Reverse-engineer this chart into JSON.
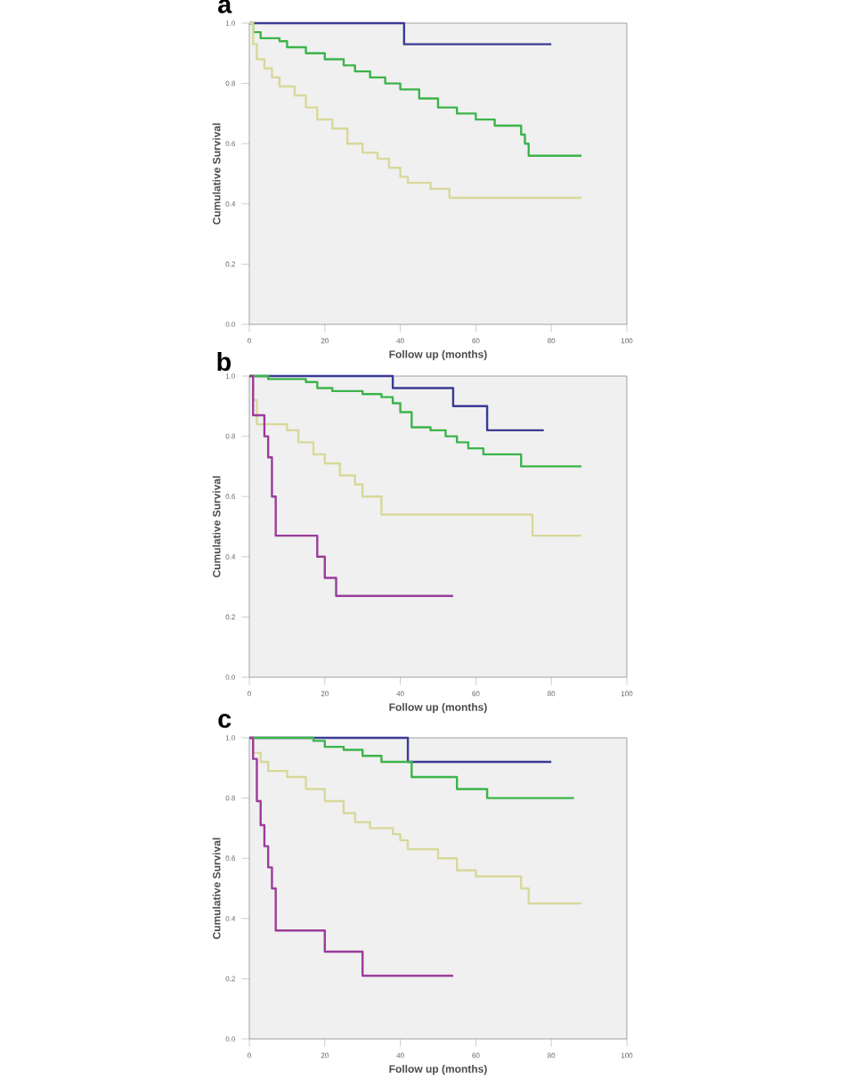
{
  "chart_data": [
    {
      "type": "step",
      "title": "a",
      "xlabel": "Follow up (months)",
      "ylabel": "Cumulative Survival",
      "xlim": [
        0,
        100
      ],
      "ylim": [
        0,
        1
      ],
      "xticks": [
        0,
        20,
        40,
        60,
        80,
        100
      ],
      "yticks": [
        {
          "value": 0,
          "label": "0.0"
        },
        {
          "value": 0.2,
          "label": "0.2"
        },
        {
          "value": 0.4,
          "label": "0.4"
        },
        {
          "value": 0.6,
          "label": "0.6"
        },
        {
          "value": 0.8,
          "label": "0.8"
        },
        {
          "value": 1,
          "label": "1.0"
        }
      ],
      "series": [
        {
          "color": "#3b3b95",
          "x": [
            0,
            41,
            80
          ],
          "values": [
            1,
            0.93,
            0.93
          ]
        },
        {
          "color": "#3cb44b",
          "x": [
            0,
            1,
            3,
            8,
            10,
            15,
            20,
            25,
            28,
            32,
            36,
            40,
            45,
            50,
            55,
            60,
            65,
            72,
            73,
            74,
            88
          ],
          "values": [
            1,
            0.97,
            0.95,
            0.94,
            0.92,
            0.9,
            0.88,
            0.86,
            0.84,
            0.82,
            0.8,
            0.78,
            0.75,
            0.72,
            0.7,
            0.68,
            0.66,
            0.63,
            0.6,
            0.56,
            0.56
          ]
        },
        {
          "color": "#d8d89a",
          "x": [
            0,
            1,
            2,
            4,
            6,
            8,
            12,
            15,
            18,
            22,
            26,
            30,
            34,
            37,
            40,
            42,
            48,
            53,
            88
          ],
          "values": [
            1,
            0.93,
            0.88,
            0.85,
            0.82,
            0.79,
            0.76,
            0.72,
            0.68,
            0.65,
            0.6,
            0.57,
            0.55,
            0.52,
            0.49,
            0.47,
            0.45,
            0.42,
            0.42
          ]
        }
      ]
    },
    {
      "type": "step",
      "title": "b",
      "xlabel": "Follow up (months)",
      "ylabel": "Cumulative Survival",
      "xlim": [
        0,
        100
      ],
      "ylim": [
        0,
        1
      ],
      "xticks": [
        0,
        20,
        40,
        60,
        80,
        100
      ],
      "yticks": [
        {
          "value": 0,
          "label": "0.0"
        },
        {
          "value": 0.2,
          "label": "0.2"
        },
        {
          "value": 0.4,
          "label": "0.4"
        },
        {
          "value": 0.6,
          "label": "0.6"
        },
        {
          "value": 0.8,
          "label": "0.8"
        },
        {
          "value": 1,
          "label": "1.0"
        }
      ],
      "series": [
        {
          "color": "#3b3b95",
          "x": [
            0,
            38,
            54,
            63,
            78
          ],
          "values": [
            1,
            0.96,
            0.9,
            0.82,
            0.82
          ]
        },
        {
          "color": "#3cb44b",
          "x": [
            0,
            5,
            15,
            18,
            22,
            30,
            35,
            38,
            40,
            43,
            48,
            52,
            55,
            58,
            62,
            72,
            88
          ],
          "values": [
            1,
            0.99,
            0.98,
            0.96,
            0.95,
            0.94,
            0.93,
            0.91,
            0.88,
            0.83,
            0.82,
            0.8,
            0.78,
            0.76,
            0.74,
            0.7,
            0.7
          ]
        },
        {
          "color": "#d8d89a",
          "x": [
            0,
            1,
            2,
            10,
            13,
            17,
            20,
            24,
            28,
            30,
            35,
            75,
            88
          ],
          "values": [
            1,
            0.92,
            0.84,
            0.82,
            0.78,
            0.74,
            0.71,
            0.67,
            0.64,
            0.6,
            0.54,
            0.47,
            0.47
          ]
        },
        {
          "color": "#9b3c9b",
          "x": [
            0,
            1,
            4,
            5,
            6,
            7,
            18,
            20,
            23,
            54
          ],
          "values": [
            1,
            0.87,
            0.8,
            0.73,
            0.6,
            0.47,
            0.4,
            0.33,
            0.27,
            0.27
          ]
        }
      ]
    },
    {
      "type": "step",
      "title": "c",
      "xlabel": "Follow up (months)",
      "ylabel": "Cumulative Survival",
      "xlim": [
        0,
        100
      ],
      "ylim": [
        0,
        1
      ],
      "xticks": [
        0,
        20,
        40,
        60,
        80,
        100
      ],
      "yticks": [
        {
          "value": 0,
          "label": "0.0"
        },
        {
          "value": 0.2,
          "label": "0.2"
        },
        {
          "value": 0.4,
          "label": "0.4"
        },
        {
          "value": 0.6,
          "label": "0.6"
        },
        {
          "value": 0.8,
          "label": "0.8"
        },
        {
          "value": 1,
          "label": "1.0"
        }
      ],
      "series": [
        {
          "color": "#3b3b95",
          "x": [
            0,
            42,
            80
          ],
          "values": [
            1,
            0.92,
            0.92
          ]
        },
        {
          "color": "#3cb44b",
          "x": [
            0,
            17,
            20,
            25,
            30,
            35,
            43,
            55,
            63,
            86
          ],
          "values": [
            1,
            0.99,
            0.97,
            0.96,
            0.94,
            0.92,
            0.87,
            0.83,
            0.8,
            0.8
          ]
        },
        {
          "color": "#d8d89a",
          "x": [
            0,
            1,
            3,
            5,
            10,
            15,
            20,
            25,
            28,
            32,
            38,
            40,
            42,
            50,
            55,
            60,
            72,
            74,
            88
          ],
          "values": [
            1,
            0.95,
            0.92,
            0.89,
            0.87,
            0.83,
            0.79,
            0.75,
            0.72,
            0.7,
            0.68,
            0.66,
            0.63,
            0.6,
            0.56,
            0.54,
            0.5,
            0.45,
            0.45
          ]
        },
        {
          "color": "#9b3c9b",
          "x": [
            0,
            1,
            2,
            3,
            4,
            5,
            6,
            7,
            20,
            30,
            54
          ],
          "values": [
            1,
            0.93,
            0.79,
            0.71,
            0.64,
            0.57,
            0.5,
            0.36,
            0.29,
            0.21,
            0.21
          ]
        }
      ]
    }
  ]
}
